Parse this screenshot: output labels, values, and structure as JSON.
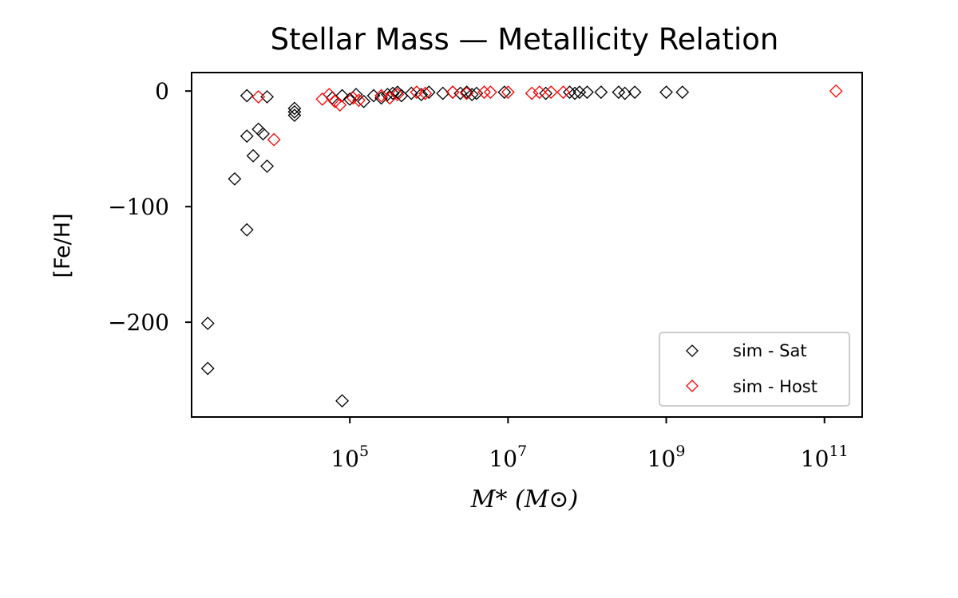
{
  "chart_data": {
    "type": "scatter",
    "title": "Stellar Mass — Metallicity Relation",
    "xlabel": "M* (M⊙)",
    "ylabel": "[Fe/H]",
    "x_scale": "log",
    "xlim": [
      1000.0,
      300000000000.0
    ],
    "ylim": [
      -282,
      16
    ],
    "x_ticks": [
      {
        "value": 100000.0,
        "base": "10",
        "exp": "5"
      },
      {
        "value": 10000000.0,
        "base": "10",
        "exp": "7"
      },
      {
        "value": 1000000000.0,
        "base": "10",
        "exp": "9"
      },
      {
        "value": 100000000000.0,
        "base": "10",
        "exp": "11"
      }
    ],
    "y_ticks": [
      {
        "value": 0,
        "label": "0"
      },
      {
        "value": -100,
        "label": "−100"
      },
      {
        "value": -200,
        "label": "−200"
      }
    ],
    "legend_position": "bottom-right",
    "grid": false,
    "series": [
      {
        "name": "sim - Sat",
        "color": "#000000",
        "marker": "diamond-open",
        "points": [
          [
            1600.0,
            -201
          ],
          [
            1600.0,
            -240
          ],
          [
            80000.0,
            -268
          ],
          [
            5000.0,
            -120
          ],
          [
            3500.0,
            -76
          ],
          [
            6000.0,
            -56
          ],
          [
            9000.0,
            -65
          ],
          [
            5000.0,
            -39
          ],
          [
            7000.0,
            -33
          ],
          [
            8000.0,
            -37
          ],
          [
            20000.0,
            -18
          ],
          [
            20000.0,
            -21
          ],
          [
            20000.0,
            -15
          ],
          [
            5000.0,
            -4
          ],
          [
            9000.0,
            -5
          ],
          [
            60000.0,
            -6
          ],
          [
            80000.0,
            -4
          ],
          [
            100000.0,
            -7
          ],
          [
            120000.0,
            -3
          ],
          [
            150000.0,
            -9
          ],
          [
            200000.0,
            -4
          ],
          [
            250000.0,
            -6
          ],
          [
            300000.0,
            -3
          ],
          [
            350000.0,
            -2
          ],
          [
            400000.0,
            -1
          ],
          [
            450000.0,
            -4
          ],
          [
            600000.0,
            -2
          ],
          [
            800000.0,
            -3
          ],
          [
            1000000.0,
            -1
          ],
          [
            1500000.0,
            -2
          ],
          [
            2000000.0,
            -1
          ],
          [
            2500000.0,
            -2
          ],
          [
            3000000.0,
            -1
          ],
          [
            3500000.0,
            -3
          ],
          [
            4000000.0,
            -2
          ],
          [
            9000000.0,
            -1
          ],
          [
            30000000.0,
            -2
          ],
          [
            60000000.0,
            -1
          ],
          [
            70000000.0,
            -2
          ],
          [
            80000000.0,
            -1
          ],
          [
            100000000.0,
            -1
          ],
          [
            150000000.0,
            -1
          ],
          [
            250000000.0,
            -1
          ],
          [
            300000000.0,
            -2
          ],
          [
            400000000.0,
            -1
          ],
          [
            1000000000.0,
            -1
          ],
          [
            1600000000.0,
            -1
          ]
        ]
      },
      {
        "name": "sim - Host",
        "color": "#ff0000",
        "marker": "diamond-open",
        "points": [
          [
            7000.0,
            -5
          ],
          [
            11000.0,
            -42
          ],
          [
            45000.0,
            -7
          ],
          [
            55000.0,
            -3
          ],
          [
            65000.0,
            -9
          ],
          [
            75000.0,
            -12
          ],
          [
            110000.0,
            -6
          ],
          [
            130000.0,
            -8
          ],
          [
            250000.0,
            -4
          ],
          [
            320000.0,
            -6
          ],
          [
            400000.0,
            -3
          ],
          [
            700000.0,
            -1
          ],
          [
            900000.0,
            -2
          ],
          [
            2000000.0,
            -1
          ],
          [
            3000000.0,
            -2
          ],
          [
            5000000.0,
            -1
          ],
          [
            6000000.0,
            -1
          ],
          [
            10000000.0,
            -1
          ],
          [
            20000000.0,
            -2
          ],
          [
            25000000.0,
            -1
          ],
          [
            35000000.0,
            -1
          ],
          [
            50000000.0,
            -1
          ],
          [
            140000000000.0,
            0
          ]
        ]
      }
    ]
  }
}
